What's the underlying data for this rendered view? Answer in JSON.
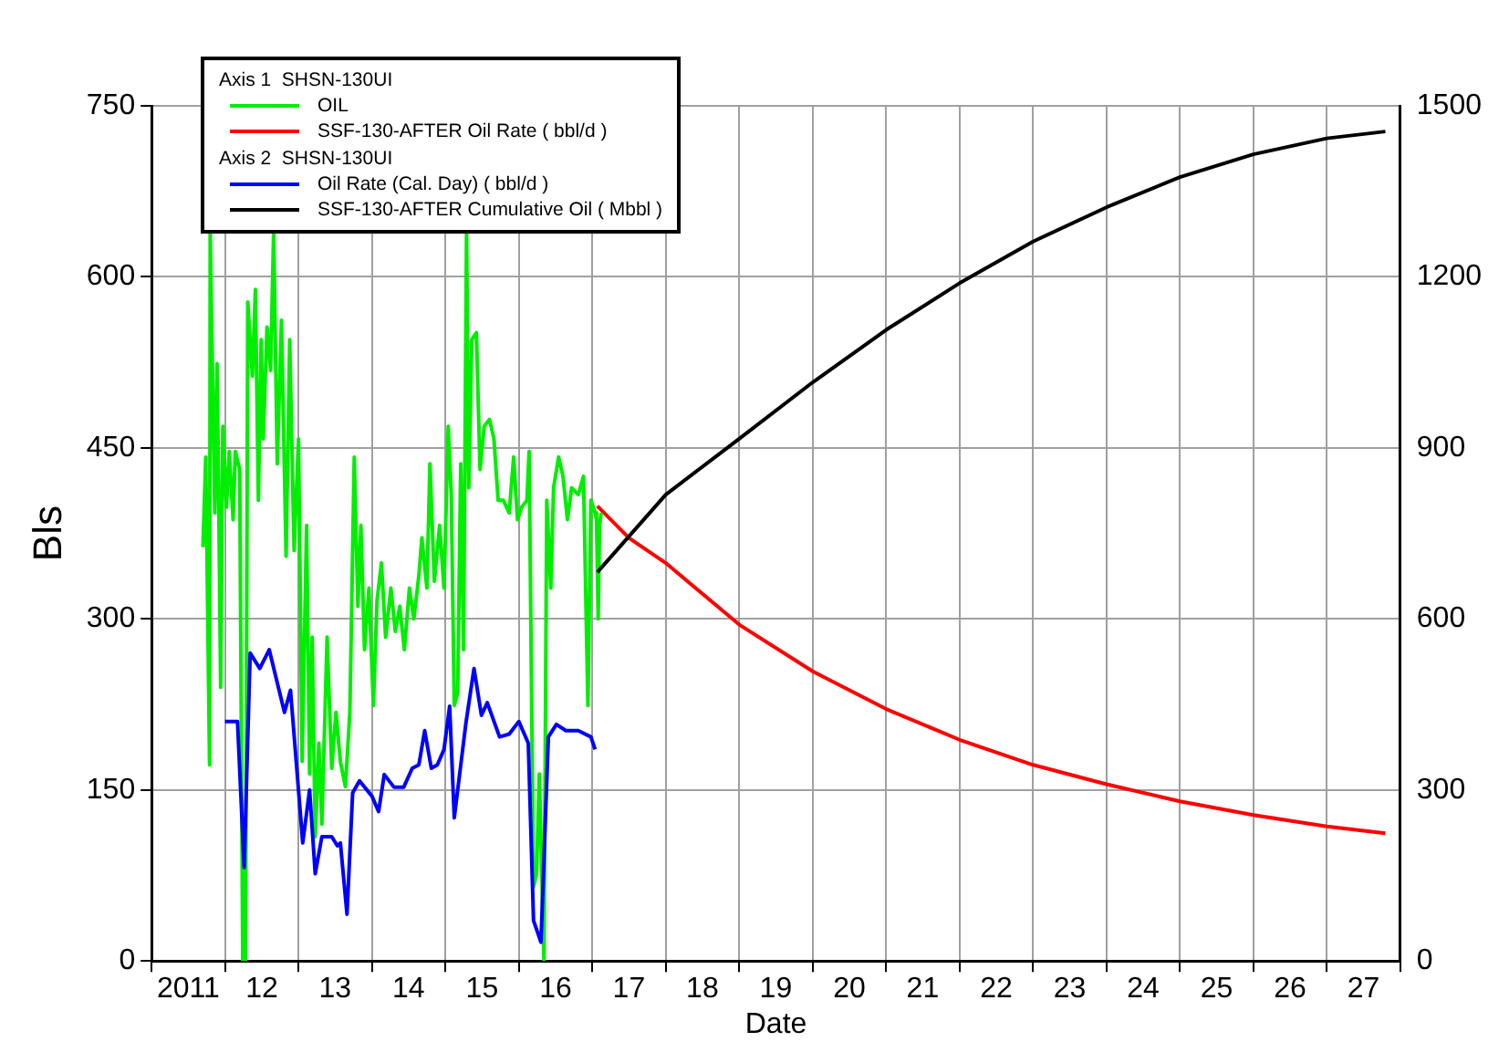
{
  "chart_data": {
    "type": "line",
    "xlabel": "Date",
    "ylabel": "Bls",
    "xlim": [
      "2011-01-01",
      "2028-01-01"
    ],
    "xticks": [
      {
        "value": "2011-01-01",
        "label": null
      },
      {
        "value": "2011-07-02",
        "label": "2011"
      },
      {
        "value": "2012-01-01",
        "label": null
      },
      {
        "value": "2012-07-02",
        "label": "12"
      },
      {
        "value": "2013-01-01",
        "label": null
      },
      {
        "value": "2013-07-02",
        "label": "13"
      },
      {
        "value": "2014-01-01",
        "label": null
      },
      {
        "value": "2014-07-02",
        "label": "14"
      },
      {
        "value": "2015-01-01",
        "label": null
      },
      {
        "value": "2015-07-02",
        "label": "15"
      },
      {
        "value": "2016-01-01",
        "label": null
      },
      {
        "value": "2016-07-02",
        "label": "16"
      },
      {
        "value": "2017-01-01",
        "label": null
      },
      {
        "value": "2017-07-02",
        "label": "17"
      },
      {
        "value": "2018-01-01",
        "label": null
      },
      {
        "value": "2018-07-02",
        "label": "18"
      },
      {
        "value": "2019-01-01",
        "label": null
      },
      {
        "value": "2019-07-02",
        "label": "19"
      },
      {
        "value": "2020-01-01",
        "label": null
      },
      {
        "value": "2020-07-02",
        "label": "20"
      },
      {
        "value": "2021-01-01",
        "label": null
      },
      {
        "value": "2021-07-02",
        "label": "21"
      },
      {
        "value": "2022-01-01",
        "label": null
      },
      {
        "value": "2022-07-02",
        "label": "22"
      },
      {
        "value": "2023-01-01",
        "label": null
      },
      {
        "value": "2023-07-02",
        "label": "23"
      },
      {
        "value": "2024-01-01",
        "label": null
      },
      {
        "value": "2024-07-02",
        "label": "24"
      },
      {
        "value": "2025-01-01",
        "label": null
      },
      {
        "value": "2025-07-02",
        "label": "25"
      },
      {
        "value": "2026-01-01",
        "label": null
      },
      {
        "value": "2026-07-02",
        "label": "26"
      },
      {
        "value": "2027-01-01",
        "label": null
      },
      {
        "value": "2027-07-02",
        "label": "27"
      },
      {
        "value": "2028-01-01",
        "label": null
      }
    ],
    "ylim": [
      0,
      750
    ],
    "yticks": [
      0,
      150,
      300,
      450,
      600,
      750
    ],
    "y2lim": [
      0,
      1500
    ],
    "y2ticks": [
      0,
      300,
      600,
      900,
      1200,
      1500
    ],
    "grid": true,
    "legend": "top left",
    "marker": "none",
    "line_style": "solid",
    "annotations": [
      "Axis 1  SHSN-130UI",
      "Axis 2  SHSN-130UI"
    ],
    "series": [
      {
        "name": "OIL",
        "color": "#00ee00",
        "axis": "y",
        "type": "line",
        "x": [
          "2011-09-13",
          "2011-09-27",
          "2011-10-16",
          "2011-10-19",
          "2011-11-11",
          "2011-11-22",
          "2011-11-29",
          "2011-12-10",
          "2011-12-21",
          "2012-01-08",
          "2012-01-22",
          "2012-02-10",
          "2012-02-21",
          "2012-03-14",
          "2012-03-29",
          "2012-04-12",
          "2012-04-23",
          "2012-05-16",
          "2012-05-31",
          "2012-06-15",
          "2012-06-29",
          "2012-07-09",
          "2012-07-28",
          "2012-08-15",
          "2012-08-30",
          "2012-09-17",
          "2012-10-08",
          "2012-10-31",
          "2012-11-18",
          "2012-12-10",
          "2013-01-01",
          "2013-01-19",
          "2013-02-10",
          "2013-02-25",
          "2013-03-10",
          "2013-03-25",
          "2013-04-12",
          "2013-04-27",
          "2013-05-23",
          "2013-06-15",
          "2013-07-06",
          "2013-07-28",
          "2013-08-22",
          "2013-09-13",
          "2013-10-05",
          "2013-10-23",
          "2013-11-07",
          "2013-11-25",
          "2013-12-17",
          "2014-01-08",
          "2014-01-26",
          "2014-02-17",
          "2014-03-10",
          "2014-04-05",
          "2014-04-27",
          "2014-05-19",
          "2014-06-11",
          "2014-07-06",
          "2014-07-28",
          "2014-08-22",
          "2014-09-06",
          "2014-10-01",
          "2014-10-16",
          "2014-11-07",
          "2014-12-03",
          "2014-12-25",
          "2015-01-15",
          "2015-01-30",
          "2015-02-14",
          "2015-03-03",
          "2015-03-18",
          "2015-04-01",
          "2015-04-16",
          "2015-04-27",
          "2015-05-12",
          "2015-06-04",
          "2015-06-22",
          "2015-07-13",
          "2015-08-08",
          "2015-08-30",
          "2015-09-20",
          "2015-10-16",
          "2015-11-14",
          "2015-12-06",
          "2015-12-25",
          "2016-01-15",
          "2016-02-10",
          "2016-02-21",
          "2016-03-14",
          "2016-03-29",
          "2016-04-12",
          "2016-05-05",
          "2016-05-19",
          "2016-06-08",
          "2016-06-22",
          "2016-07-17",
          "2016-08-08",
          "2016-08-30",
          "2016-09-20",
          "2016-10-23",
          "2016-11-18",
          "2016-12-10",
          "2016-12-25",
          "2017-01-15",
          "2017-01-22",
          "2017-01-30",
          "2017-02-06",
          "2017-02-14"
        ],
        "values": [
          363,
          442,
          172,
          640,
          393,
          524,
          431,
          240,
          469,
          398,
          447,
          387,
          447,
          431,
          0,
          0,
          578,
          513,
          589,
          404,
          545,
          458,
          556,
          518,
          640,
          436,
          562,
          355,
          545,
          360,
          458,
          175,
          382,
          164,
          284,
          109,
          191,
          120,
          284,
          169,
          218,
          175,
          153,
          218,
          442,
          311,
          382,
          273,
          327,
          224,
          316,
          349,
          284,
          327,
          289,
          311,
          273,
          327,
          300,
          338,
          371,
          327,
          436,
          333,
          382,
          327,
          469,
          409,
          224,
          235,
          436,
          273,
          640,
          415,
          545,
          551,
          431,
          469,
          475,
          458,
          404,
          404,
          393,
          442,
          387,
          398,
          404,
          447,
          65,
          76,
          164,
          0,
          404,
          327,
          415,
          442,
          425,
          387,
          415,
          409,
          425,
          224,
          404,
          393,
          387,
          300,
          382,
          393
        ]
      },
      {
        "name": "SSF-130-AFTER Oil Rate ( bbl/d )",
        "color": "#ff0000",
        "axis": "y",
        "type": "line",
        "x": [
          "2017-01-26",
          "2017-07-02",
          "2018-01-01",
          "2019-01-01",
          "2020-01-01",
          "2021-01-01",
          "2022-01-01",
          "2023-01-01",
          "2024-01-01",
          "2025-01-01",
          "2026-01-01",
          "2027-01-01",
          "2027-10-19"
        ],
        "values": [
          399,
          371,
          349,
          295,
          254,
          221,
          194,
          172,
          155,
          140,
          128,
          118,
          112
        ]
      },
      {
        "name": "Oil Rate (Cal. Day) ( bbl/d )",
        "color": "#0000ff",
        "axis": "y2",
        "type": "line",
        "x": [
          "2012-01-01",
          "2012-03-03",
          "2012-04-05",
          "2012-05-05",
          "2012-06-22",
          "2012-08-08",
          "2012-10-23",
          "2012-11-22",
          "2013-01-22",
          "2013-02-25",
          "2013-03-25",
          "2013-04-27",
          "2013-06-15",
          "2013-07-13",
          "2013-07-28",
          "2013-08-30",
          "2013-09-27",
          "2013-10-31",
          "2014-01-01",
          "2014-02-03",
          "2014-03-03",
          "2014-04-20",
          "2014-06-08",
          "2014-07-20",
          "2014-08-22",
          "2014-09-20",
          "2014-10-23",
          "2014-11-22",
          "2014-12-25",
          "2015-01-22",
          "2015-02-14",
          "2015-04-12",
          "2015-05-23",
          "2015-06-29",
          "2015-07-28",
          "2015-09-27",
          "2015-11-14",
          "2016-01-01",
          "2016-02-17",
          "2016-03-14",
          "2016-04-20",
          "2016-05-27",
          "2016-07-06",
          "2016-08-22",
          "2016-10-23",
          "2016-12-25",
          "2017-01-15"
        ],
        "values": [
          420,
          420,
          164,
          540,
          513,
          546,
          436,
          475,
          207,
          300,
          153,
          218,
          218,
          202,
          207,
          82,
          295,
          316,
          289,
          262,
          327,
          305,
          305,
          338,
          344,
          404,
          338,
          344,
          371,
          447,
          251,
          415,
          513,
          431,
          453,
          393,
          398,
          420,
          382,
          71,
          33,
          393,
          415,
          404,
          404,
          393,
          371
        ]
      },
      {
        "name": "SSF-130-AFTER Cumulative Oil ( Mbbl )",
        "color": "#000000",
        "axis": "y2",
        "type": "line",
        "x": [
          "2017-01-26",
          "2018-01-01",
          "2019-01-01",
          "2020-01-01",
          "2021-01-01",
          "2022-01-01",
          "2023-01-01",
          "2024-01-01",
          "2025-01-01",
          "2026-01-01",
          "2027-01-01",
          "2027-10-19"
        ],
        "values": [
          682,
          818,
          916,
          1015,
          1107,
          1189,
          1262,
          1322,
          1375,
          1415,
          1443,
          1455
        ]
      }
    ]
  }
}
